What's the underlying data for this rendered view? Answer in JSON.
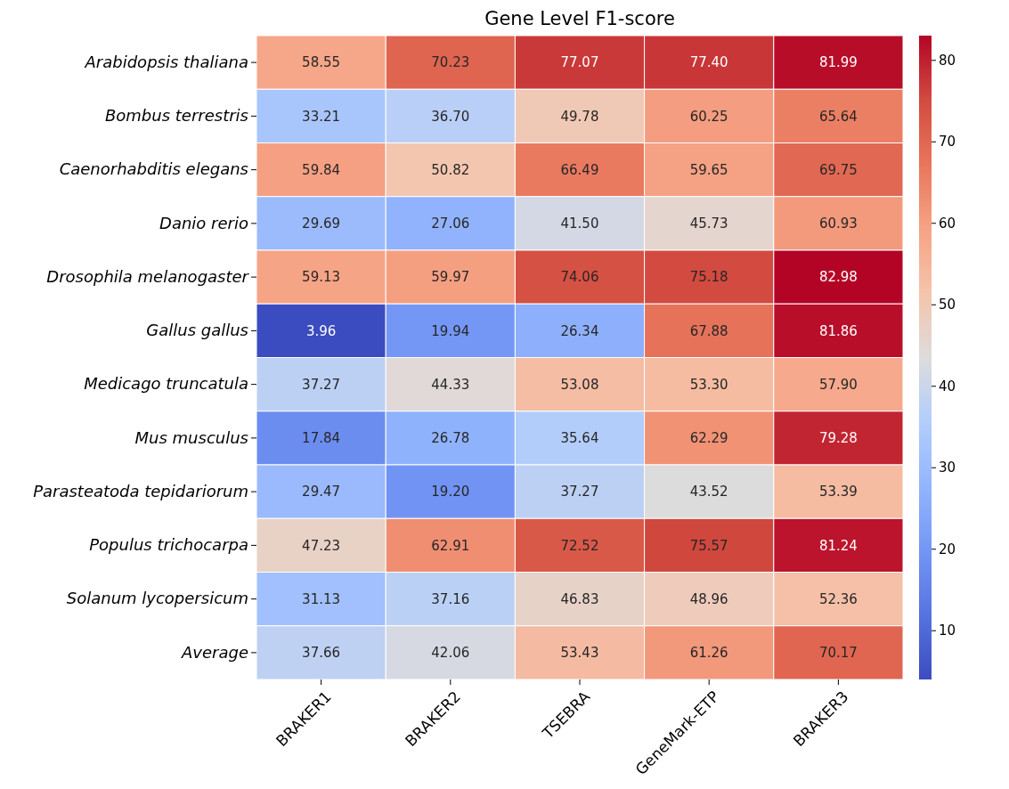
{
  "chart_data": {
    "type": "heatmap",
    "title": "Gene Level F1-score",
    "categories": [
      "BRAKER1",
      "BRAKER2",
      "TSEBRA",
      "GeneMark-ETP",
      "BRAKER3"
    ],
    "y_categories": [
      "Arabidopsis thaliana",
      "Bombus terrestris",
      "Caenorhabditis elegans",
      "Danio rerio",
      "Drosophila melanogaster",
      "Gallus gallus",
      "Medicago truncatula",
      "Mus musculus",
      "Parasteatoda tepidariorum",
      "Populus trichocarpa",
      "Solanum lycopersicum",
      "Average"
    ],
    "cells": [
      [
        58.55,
        70.23,
        77.07,
        77.4,
        81.99
      ],
      [
        33.21,
        36.7,
        49.78,
        60.25,
        65.64
      ],
      [
        59.84,
        50.82,
        66.49,
        59.65,
        69.75
      ],
      [
        29.69,
        27.06,
        41.5,
        45.73,
        60.93
      ],
      [
        59.13,
        59.97,
        74.06,
        75.18,
        82.98
      ],
      [
        3.96,
        19.94,
        26.34,
        67.88,
        81.86
      ],
      [
        37.27,
        44.33,
        53.08,
        53.3,
        57.9
      ],
      [
        17.84,
        26.78,
        35.64,
        62.29,
        79.28
      ],
      [
        29.47,
        19.2,
        37.27,
        43.52,
        53.39
      ],
      [
        47.23,
        62.91,
        72.52,
        75.57,
        81.24
      ],
      [
        31.13,
        37.16,
        46.83,
        48.96,
        52.36
      ],
      [
        37.66,
        42.06,
        53.43,
        61.26,
        70.17
      ]
    ],
    "cell_labels": [
      [
        "58.55",
        "70.23",
        "77.07",
        "77.40",
        "81.99"
      ],
      [
        "33.21",
        "36.70",
        "49.78",
        "60.25",
        "65.64"
      ],
      [
        "59.84",
        "50.82",
        "66.49",
        "59.65",
        "69.75"
      ],
      [
        "29.69",
        "27.06",
        "41.50",
        "45.73",
        "60.93"
      ],
      [
        "59.13",
        "59.97",
        "74.06",
        "75.18",
        "82.98"
      ],
      [
        "3.96",
        "19.94",
        "26.34",
        "67.88",
        "81.86"
      ],
      [
        "37.27",
        "44.33",
        "53.08",
        "53.30",
        "57.90"
      ],
      [
        "17.84",
        "26.78",
        "35.64",
        "62.29",
        "79.28"
      ],
      [
        "29.47",
        "19.20",
        "37.27",
        "43.52",
        "53.39"
      ],
      [
        "47.23",
        "62.91",
        "72.52",
        "75.57",
        "81.24"
      ],
      [
        "31.13",
        "37.16",
        "46.83",
        "48.96",
        "52.36"
      ],
      [
        "37.66",
        "42.06",
        "53.43",
        "61.26",
        "70.17"
      ]
    ],
    "clim": [
      3.96,
      82.98
    ],
    "cticks": [
      10,
      20,
      30,
      40,
      50,
      60,
      70,
      80
    ]
  }
}
